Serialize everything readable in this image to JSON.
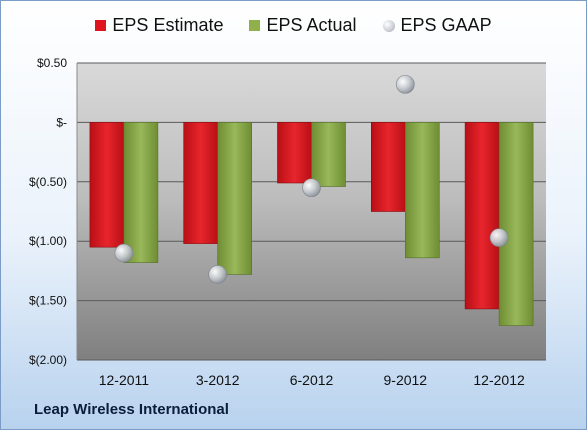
{
  "company": "Leap Wireless International",
  "legend": [
    {
      "name": "EPS Estimate",
      "color": "#e0141e",
      "shape": "rect"
    },
    {
      "name": "EPS Actual",
      "color": "#8fb04a",
      "shape": "rect"
    },
    {
      "name": "EPS GAAP",
      "color": "#c9ced4",
      "shape": "ball"
    }
  ],
  "chart_data": {
    "type": "bar",
    "title": "",
    "xlabel": "",
    "ylabel": "",
    "categories": [
      "12-2011",
      "3-2012",
      "6-2012",
      "9-2012",
      "12-2012"
    ],
    "series": [
      {
        "name": "EPS Estimate",
        "type": "bar",
        "color": "#e0141e",
        "values": [
          -1.05,
          -1.02,
          -0.51,
          -0.75,
          -1.57
        ]
      },
      {
        "name": "EPS Actual",
        "type": "bar",
        "color": "#8fb04a",
        "values": [
          -1.18,
          -1.28,
          -0.54,
          -1.14,
          -1.71
        ]
      },
      {
        "name": "EPS GAAP",
        "type": "scatter",
        "color": "#c9ced4",
        "values": [
          -1.1,
          -1.28,
          -0.55,
          0.32,
          -0.97
        ]
      }
    ],
    "ylim": [
      -2.0,
      0.5
    ],
    "yticks": [
      0.5,
      0,
      -0.5,
      -1.0,
      -1.5,
      -2.0
    ],
    "ytick_labels": [
      "$0.50",
      "$-",
      "$(0.50)",
      "$(1.00)",
      "$(1.50)",
      "$(2.00)"
    ],
    "grid": true,
    "legend_position": "top"
  }
}
